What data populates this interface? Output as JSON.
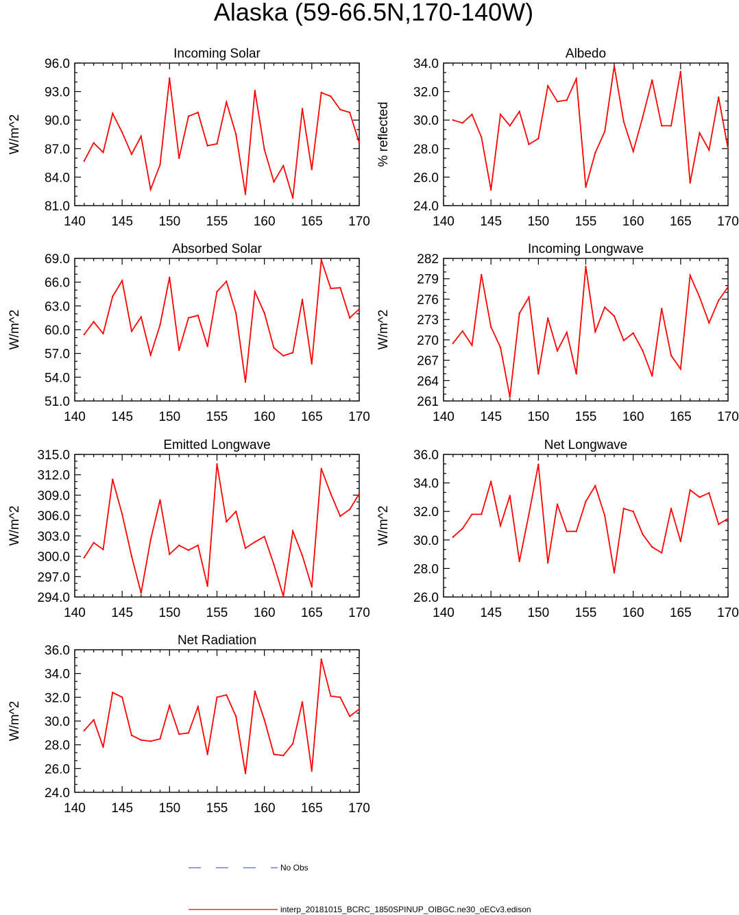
{
  "figure": {
    "title": "Alaska (59-66.5N,170-140W)"
  },
  "legend": {
    "obs_label": "No Obs",
    "obs_color": "#5566dd",
    "model_label": "interp_20181015_BCRC_1850SPINUP_OIBGC.ne30_oECv3.edison",
    "model_color": "#ff0000"
  },
  "chart_data": [
    {
      "type": "line",
      "title": "Incoming Solar",
      "xlabel": "",
      "ylabel": "W/m^2",
      "xlim": [
        140,
        170
      ],
      "ylim": [
        81.0,
        96.0
      ],
      "xticks": [
        "140",
        "145",
        "150",
        "155",
        "160",
        "165",
        "170"
      ],
      "yticks": [
        "81.0",
        "84.0",
        "87.0",
        "90.0",
        "93.0",
        "96.0"
      ],
      "grid": false,
      "series": [
        {
          "name": "interp_20181015_BCRC_1850SPINUP_OIBGC.ne30_oECv3.edison",
          "x": [
            141,
            142,
            143,
            144,
            145,
            146,
            147,
            148,
            149,
            150,
            151,
            152,
            153,
            154,
            155,
            156,
            157,
            158,
            159,
            160,
            161,
            162,
            163,
            164,
            165,
            166,
            167,
            168,
            169,
            170
          ],
          "values": [
            85.7,
            87.6,
            86.6,
            90.7,
            88.7,
            86.4,
            88.3,
            82.7,
            85.3,
            94.4,
            86.0,
            90.4,
            90.8,
            87.3,
            87.5,
            91.9,
            88.5,
            82.2,
            93.1,
            86.9,
            83.5,
            85.2,
            81.8,
            91.2,
            84.8,
            92.9,
            92.5,
            91.1,
            90.8,
            87.6
          ]
        }
      ]
    },
    {
      "type": "line",
      "title": "Albedo",
      "xlabel": "",
      "ylabel": "% reflected",
      "xlim": [
        140,
        170
      ],
      "ylim": [
        24.0,
        34.0
      ],
      "xticks": [
        "140",
        "145",
        "150",
        "155",
        "160",
        "165",
        "170"
      ],
      "yticks": [
        "24.0",
        "26.0",
        "28.0",
        "30.0",
        "32.0",
        "34.0"
      ],
      "grid": false,
      "series": [
        {
          "name": "interp_20181015_BCRC_1850SPINUP_OIBGC.ne30_oECv3.edison",
          "x": [
            141,
            142,
            143,
            144,
            145,
            146,
            147,
            148,
            149,
            150,
            151,
            152,
            153,
            154,
            155,
            156,
            157,
            158,
            159,
            160,
            161,
            162,
            163,
            164,
            165,
            166,
            167,
            168,
            169,
            170
          ],
          "values": [
            30.0,
            29.8,
            30.4,
            28.8,
            25.1,
            30.4,
            29.6,
            30.6,
            28.3,
            28.7,
            32.4,
            31.3,
            31.4,
            32.9,
            25.3,
            27.7,
            29.2,
            33.8,
            29.9,
            27.8,
            30.2,
            32.8,
            29.6,
            29.6,
            33.4,
            25.6,
            29.1,
            27.9,
            31.6,
            28.0
          ]
        }
      ]
    },
    {
      "type": "line",
      "title": "Absorbed Solar",
      "xlabel": "",
      "ylabel": "W/m^2",
      "xlim": [
        140,
        170
      ],
      "ylim": [
        51.0,
        69.0
      ],
      "xticks": [
        "140",
        "145",
        "150",
        "155",
        "160",
        "165",
        "170"
      ],
      "yticks": [
        "51.0",
        "54.0",
        "57.0",
        "60.0",
        "63.0",
        "66.0",
        "69.0"
      ],
      "grid": false,
      "series": [
        {
          "name": "interp_20181015_BCRC_1850SPINUP_OIBGC.ne30_oECv3.edison",
          "x": [
            141,
            142,
            143,
            144,
            145,
            146,
            147,
            148,
            149,
            150,
            151,
            152,
            153,
            154,
            155,
            156,
            157,
            158,
            159,
            160,
            161,
            162,
            163,
            164,
            165,
            166,
            167,
            168,
            169,
            170
          ],
          "values": [
            59.4,
            61.0,
            59.5,
            64.2,
            66.2,
            59.8,
            61.6,
            56.8,
            60.6,
            66.6,
            57.4,
            61.5,
            61.8,
            57.9,
            64.8,
            66.1,
            62.1,
            53.4,
            64.8,
            62.1,
            57.7,
            56.7,
            57.1,
            63.8,
            55.7,
            68.8,
            65.2,
            65.3,
            61.5,
            62.6
          ]
        }
      ]
    },
    {
      "type": "line",
      "title": "Incoming Longwave",
      "xlabel": "",
      "ylabel": "W/m^2",
      "xlim": [
        140,
        170
      ],
      "ylim": [
        261,
        282
      ],
      "xticks": [
        "140",
        "145",
        "150",
        "155",
        "160",
        "165",
        "170"
      ],
      "yticks": [
        "261",
        "264",
        "267",
        "270",
        "273",
        "276",
        "279",
        "282"
      ],
      "grid": false,
      "series": [
        {
          "name": "interp_20181015_BCRC_1850SPINUP_OIBGC.ne30_oECv3.edison",
          "x": [
            141,
            142,
            143,
            144,
            145,
            146,
            147,
            148,
            149,
            150,
            151,
            152,
            153,
            154,
            155,
            156,
            157,
            158,
            159,
            160,
            161,
            162,
            163,
            164,
            165,
            166,
            167,
            168,
            169,
            170
          ],
          "values": [
            269.5,
            271.3,
            269.2,
            279.6,
            271.9,
            268.9,
            261.6,
            273.9,
            276.3,
            265.0,
            273.2,
            268.4,
            271.1,
            265.0,
            280.8,
            271.2,
            274.8,
            273.5,
            269.9,
            271.0,
            268.4,
            264.7,
            274.6,
            267.7,
            265.7,
            279.5,
            276.3,
            272.5,
            275.8,
            277.8
          ]
        }
      ]
    },
    {
      "type": "line",
      "title": "Emitted Longwave",
      "xlabel": "",
      "ylabel": "W/m^2",
      "xlim": [
        140,
        170
      ],
      "ylim": [
        294.0,
        315.0
      ],
      "xticks": [
        "140",
        "145",
        "150",
        "155",
        "160",
        "165",
        "170"
      ],
      "yticks": [
        "294.0",
        "297.0",
        "300.0",
        "303.0",
        "306.0",
        "309.0",
        "312.0",
        "315.0"
      ],
      "grid": false,
      "series": [
        {
          "name": "interp_20181015_BCRC_1850SPINUP_OIBGC.ne30_oECv3.edison",
          "x": [
            141,
            142,
            143,
            144,
            145,
            146,
            147,
            148,
            149,
            150,
            151,
            152,
            153,
            154,
            155,
            156,
            157,
            158,
            159,
            160,
            161,
            162,
            163,
            164,
            165,
            166,
            167,
            168,
            169,
            170
          ],
          "values": [
            299.8,
            302.0,
            301.0,
            311.3,
            306.2,
            300.0,
            294.6,
            302.4,
            308.3,
            300.3,
            301.6,
            300.9,
            301.6,
            295.6,
            313.6,
            305.1,
            306.6,
            301.2,
            302.1,
            302.9,
            298.8,
            294.1,
            303.7,
            300.1,
            295.5,
            312.9,
            309.2,
            305.9,
            306.9,
            309.2
          ]
        }
      ]
    },
    {
      "type": "line",
      "title": "Net Longwave",
      "xlabel": "",
      "ylabel": "W/m^2",
      "xlim": [
        140,
        170
      ],
      "ylim": [
        26.0,
        36.0
      ],
      "xticks": [
        "140",
        "145",
        "150",
        "155",
        "160",
        "165",
        "170"
      ],
      "yticks": [
        "26.0",
        "28.0",
        "30.0",
        "32.0",
        "34.0",
        "36.0"
      ],
      "grid": false,
      "series": [
        {
          "name": "interp_20181015_BCRC_1850SPINUP_OIBGC.ne30_oECv3.edison",
          "x": [
            141,
            142,
            143,
            144,
            145,
            146,
            147,
            148,
            149,
            150,
            151,
            152,
            153,
            154,
            155,
            156,
            157,
            158,
            159,
            160,
            161,
            162,
            163,
            164,
            165,
            166,
            167,
            168,
            169,
            170
          ],
          "values": [
            30.2,
            30.8,
            31.8,
            31.8,
            34.1,
            31.0,
            33.1,
            28.5,
            31.8,
            35.3,
            28.4,
            32.5,
            30.6,
            30.6,
            32.7,
            33.8,
            31.7,
            27.7,
            32.2,
            32.0,
            30.4,
            29.5,
            29.1,
            32.2,
            29.9,
            33.5,
            33.0,
            33.3,
            31.1,
            31.5
          ]
        }
      ]
    },
    {
      "type": "line",
      "title": "Net Radiation",
      "xlabel": "",
      "ylabel": "W/m^2",
      "xlim": [
        140,
        170
      ],
      "ylim": [
        24.0,
        36.0
      ],
      "xticks": [
        "140",
        "145",
        "150",
        "155",
        "160",
        "165",
        "170"
      ],
      "yticks": [
        "24.0",
        "26.0",
        "28.0",
        "30.0",
        "32.0",
        "34.0",
        "36.0"
      ],
      "grid": false,
      "series": [
        {
          "name": "interp_20181015_BCRC_1850SPINUP_OIBGC.ne30_oECv3.edison",
          "x": [
            141,
            142,
            143,
            144,
            145,
            146,
            147,
            148,
            149,
            150,
            151,
            152,
            153,
            154,
            155,
            156,
            157,
            158,
            159,
            160,
            161,
            162,
            163,
            164,
            165,
            166,
            167,
            168,
            169,
            170
          ],
          "values": [
            29.2,
            30.1,
            27.8,
            32.4,
            32.0,
            28.8,
            28.4,
            28.3,
            28.5,
            31.3,
            28.9,
            29.0,
            31.2,
            27.2,
            32.0,
            32.2,
            30.4,
            25.6,
            32.5,
            30.1,
            27.2,
            27.1,
            28.1,
            31.6,
            25.8,
            35.2,
            32.1,
            32.0,
            30.4,
            31.0
          ]
        }
      ]
    }
  ]
}
